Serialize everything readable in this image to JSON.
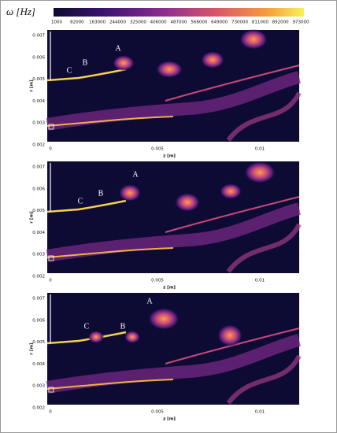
{
  "colorbar": {
    "label": "ω [Hz]",
    "ticks": [
      "1000",
      "82000",
      "163000",
      "244000",
      "325000",
      "406000",
      "487000",
      "568000",
      "649000",
      "730000",
      "811000",
      "892000",
      "973000"
    ]
  },
  "panels": [
    {
      "y_label": "r [m]",
      "x_label": "z [m]",
      "y_ticks": [
        "0.007",
        "0.006",
        "0.005",
        "0.004",
        "0.003",
        "0.002"
      ],
      "x_ticks": [
        "0",
        "0.005",
        "0.01"
      ],
      "annotations": [
        "A",
        "B",
        "C"
      ]
    },
    {
      "y_label": "r [m]",
      "x_label": "z [m]",
      "y_ticks": [
        "0.007",
        "0.006",
        "0.005",
        "0.004",
        "0.003",
        "0.002"
      ],
      "x_ticks": [
        "0",
        "0.005",
        "0.01"
      ],
      "annotations": [
        "A",
        "B",
        "C"
      ]
    },
    {
      "y_label": "r [m]",
      "x_label": "z [m]",
      "y_ticks": [
        "0.007",
        "0.006",
        "0.005",
        "0.004",
        "0.003",
        "0.002"
      ],
      "x_ticks": [
        "0",
        "0.005",
        "0.01"
      ],
      "annotations": [
        "A",
        "B",
        "C"
      ]
    }
  ]
}
